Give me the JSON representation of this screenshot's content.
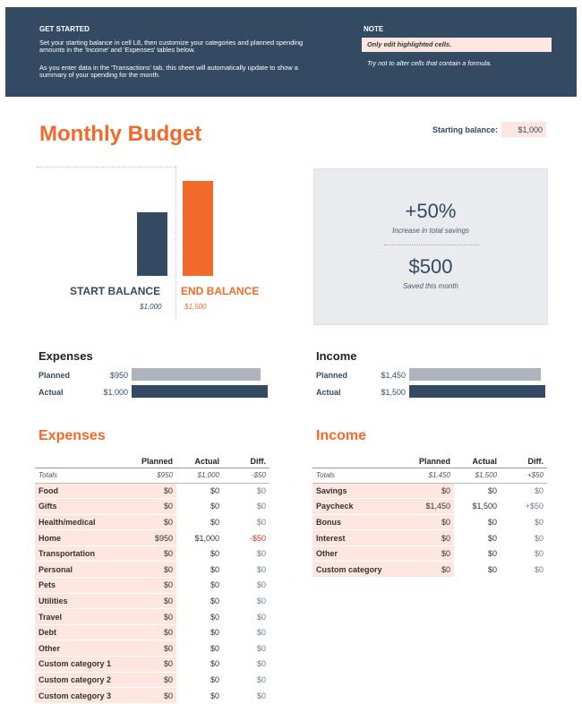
{
  "get_started": {
    "title": "GET STARTED",
    "p1": "Set your starting balance in cell L8, then customize your categories and planned spending amounts in the 'Income' and 'Expenses' tables below.",
    "p2": "As you enter data in the 'Transactions' tab, this sheet will automatically update to show a summary of your spending for the month."
  },
  "note": {
    "title": "NOTE",
    "highlight": "Only edit highlighted cells.",
    "sub": "Try not to alter cells that contain a formula."
  },
  "page_title": "Monthly Budget",
  "starting_balance": {
    "label": "Starting balance:",
    "value": "$1,000"
  },
  "chart_data": {
    "type": "bar",
    "categories": [
      "START BALANCE",
      "END BALANCE"
    ],
    "values": [
      1000,
      1500
    ],
    "value_labels": [
      "$1,000",
      "$1,500"
    ],
    "colors": [
      "#344a62",
      "#f26a2b"
    ],
    "ylim": [
      0,
      1500
    ]
  },
  "savings": {
    "percent": "+50%",
    "percent_label": "Increase in total savings",
    "amount": "$500",
    "amount_label": "Saved this month"
  },
  "expenses_summary": {
    "title": "Expenses",
    "planned_label": "Planned",
    "planned_value": "$950",
    "planned_amount": 950,
    "actual_label": "Actual",
    "actual_value": "$1,000",
    "actual_amount": 1000,
    "max": 1000
  },
  "income_summary": {
    "title": "Income",
    "planned_label": "Planned",
    "planned_value": "$1,450",
    "planned_amount": 1450,
    "actual_label": "Actual",
    "actual_value": "$1,500",
    "actual_amount": 1500,
    "max": 1500
  },
  "expenses_table": {
    "title": "Expenses",
    "headers": [
      "",
      "Planned",
      "Actual",
      "Diff."
    ],
    "totals": [
      "Totals",
      "$950",
      "$1,000",
      "-$50"
    ],
    "rows": [
      [
        "Food",
        "$0",
        "$0",
        "$0"
      ],
      [
        "Gifts",
        "$0",
        "$0",
        "$0"
      ],
      [
        "Health/medical",
        "$0",
        "$0",
        "$0"
      ],
      [
        "Home",
        "$950",
        "$1,000",
        "-$50"
      ],
      [
        "Transportation",
        "$0",
        "$0",
        "$0"
      ],
      [
        "Personal",
        "$0",
        "$0",
        "$0"
      ],
      [
        "Pets",
        "$0",
        "$0",
        "$0"
      ],
      [
        "Utilities",
        "$0",
        "$0",
        "$0"
      ],
      [
        "Travel",
        "$0",
        "$0",
        "$0"
      ],
      [
        "Debt",
        "$0",
        "$0",
        "$0"
      ],
      [
        "Other",
        "$0",
        "$0",
        "$0"
      ],
      [
        "Custom category 1",
        "$0",
        "$0",
        "$0"
      ],
      [
        "Custom category 2",
        "$0",
        "$0",
        "$0"
      ],
      [
        "Custom category 3",
        "$0",
        "$0",
        "$0"
      ]
    ]
  },
  "income_table": {
    "title": "Income",
    "headers": [
      "",
      "Planned",
      "Actual",
      "Diff."
    ],
    "totals": [
      "Totals",
      "$1,450",
      "$1,500",
      "+$50"
    ],
    "rows": [
      [
        "Savings",
        "$0",
        "$0",
        "$0"
      ],
      [
        "Paycheck",
        "$1,450",
        "$1,500",
        "+$50"
      ],
      [
        "Bonus",
        "$0",
        "$0",
        "$0"
      ],
      [
        "Interest",
        "$0",
        "$0",
        "$0"
      ],
      [
        "Other",
        "$0",
        "$0",
        "$0"
      ],
      [
        "Custom category",
        "$0",
        "$0",
        "$0"
      ]
    ]
  },
  "colors": {
    "navy": "#344a62",
    "orange": "#f26a2b",
    "highlight": "#fce6df",
    "planned_bar": "#aeb4bb"
  }
}
